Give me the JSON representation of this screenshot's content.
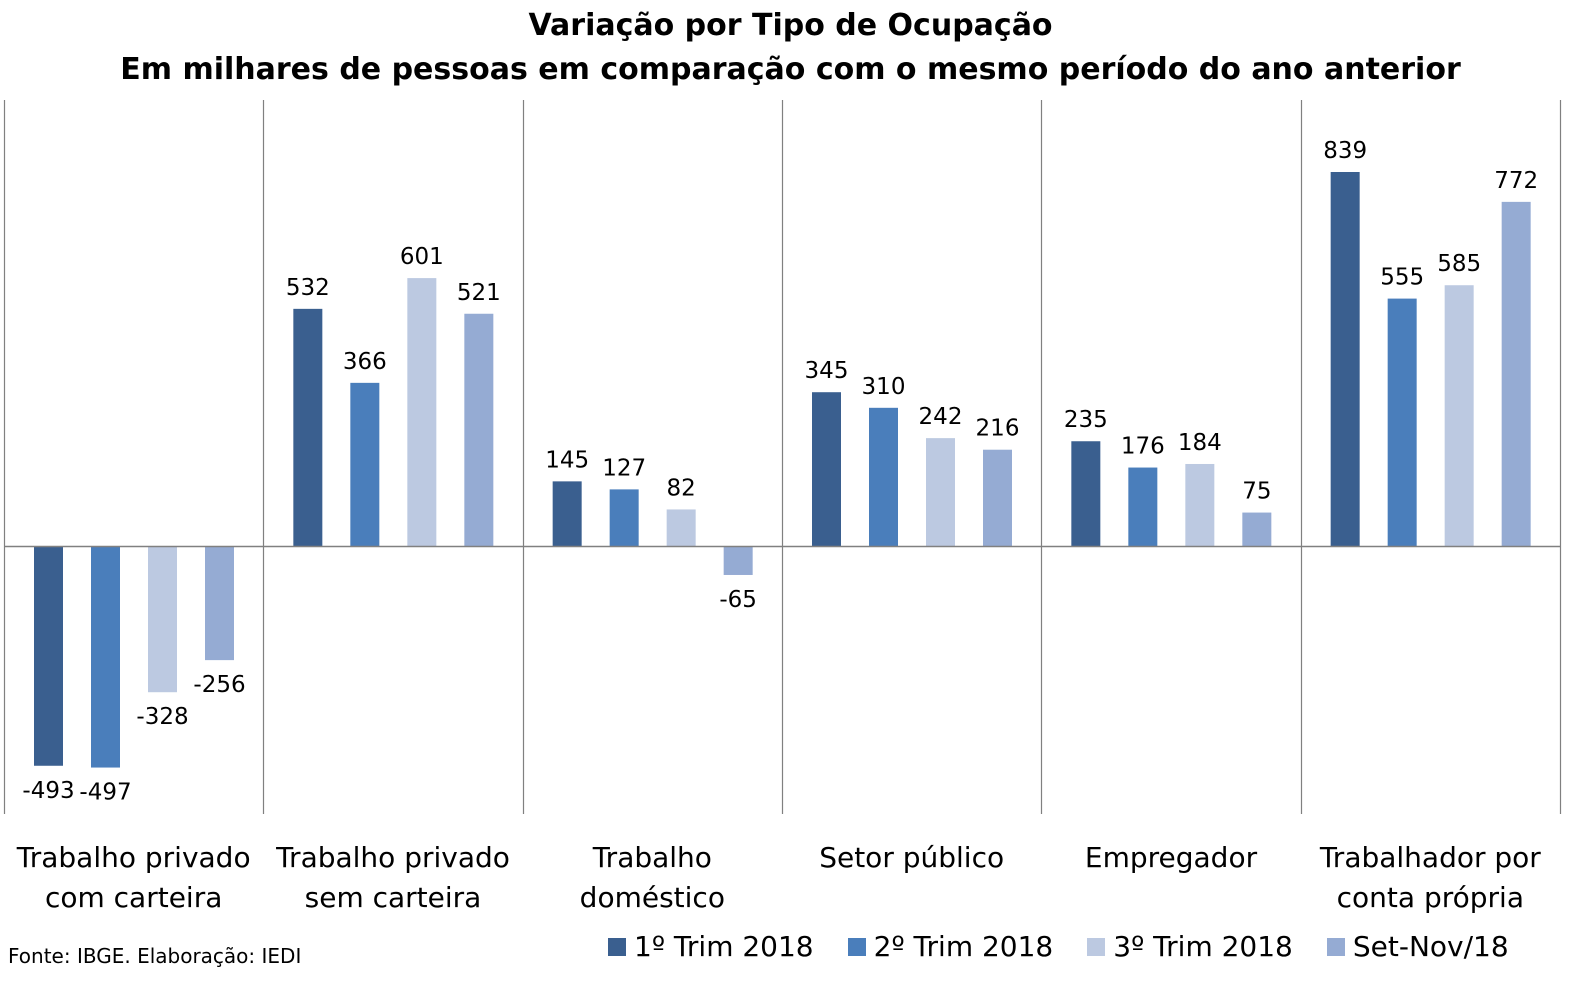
{
  "title_line1": "Variação por Tipo de Ocupação",
  "title_line2": "Em milhares de pessoas em comparação com o mesmo período do ano anterior",
  "source": "Fonte: IBGE. Elaboração: IEDI",
  "chart_data": {
    "type": "bar",
    "title": "Variação por Tipo de Ocupação",
    "subtitle": "Em milhares de pessoas em comparação com o mesmo período do ano anterior",
    "categories": [
      [
        "Trabalho privado",
        "com carteira"
      ],
      [
        "Trabalho privado",
        "sem carteira"
      ],
      [
        "Trabalho",
        "doméstico"
      ],
      [
        "Setor público",
        ""
      ],
      [
        "Empregador",
        ""
      ],
      [
        "Trabalhador por",
        "conta própria"
      ]
    ],
    "series": [
      {
        "name": "1º Trim 2018",
        "color": "#3A5F8F",
        "values": [
          -493,
          532,
          145,
          345,
          235,
          839
        ]
      },
      {
        "name": "2º Trim 2018",
        "color": "#4A7EBB",
        "values": [
          -497,
          366,
          127,
          310,
          176,
          555
        ]
      },
      {
        "name": "3º Trim 2018",
        "color": "#BCC9E1",
        "values": [
          -328,
          601,
          82,
          242,
          184,
          585
        ]
      },
      {
        "name": "Set-Nov/18",
        "color": "#95ABD3",
        "values": [
          -256,
          521,
          -65,
          216,
          75,
          772
        ]
      }
    ],
    "ylim": [
      -600,
      1000
    ],
    "xlabel": "",
    "ylabel": "",
    "legend": "bottom",
    "grid": false
  }
}
